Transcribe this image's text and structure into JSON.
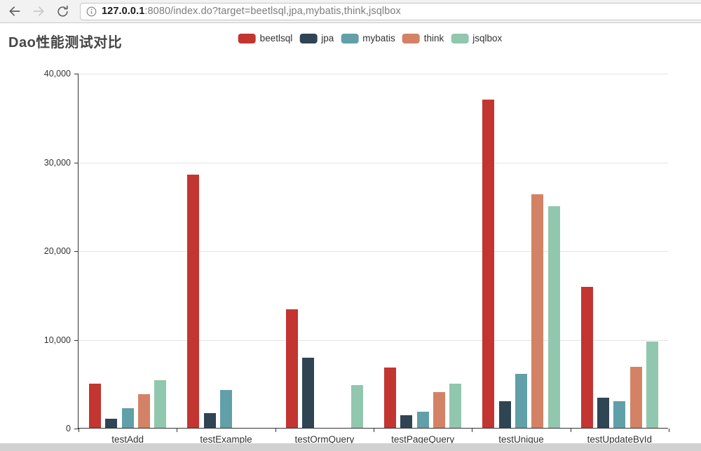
{
  "browser": {
    "url_host": "127.0.0.1",
    "url_rest": ":8080/index.do?target=beetlsql,jpa,mybatis,think,jsqlbox"
  },
  "chart_data": {
    "type": "bar",
    "title": "Dao性能测试对比",
    "categories": [
      "testAdd",
      "testExample",
      "testOrmQuery",
      "testPageQuery",
      "testUnique",
      "testUpdateById"
    ],
    "series": [
      {
        "name": "beetlsql",
        "color": "#c23531",
        "values": [
          5000,
          28500,
          13400,
          6800,
          37000,
          15900
        ]
      },
      {
        "name": "jpa",
        "color": "#2f4554",
        "values": [
          1000,
          1650,
          7900,
          1400,
          3000,
          3400
        ]
      },
      {
        "name": "mybatis",
        "color": "#61a0a8",
        "values": [
          2250,
          4300,
          0,
          1800,
          6100,
          3000
        ]
      },
      {
        "name": "think",
        "color": "#d48265",
        "values": [
          3800,
          0,
          0,
          4000,
          26300,
          6900
        ]
      },
      {
        "name": "jsqlbox",
        "color": "#91c7ae",
        "values": [
          5350,
          0,
          4800,
          5000,
          25000,
          9700
        ]
      }
    ],
    "ylim": [
      0,
      40000
    ],
    "y_ticks": [
      "40,000",
      "30,000",
      "20,000",
      "10,000",
      "0"
    ],
    "grid": true,
    "legend_position": "top-center"
  }
}
